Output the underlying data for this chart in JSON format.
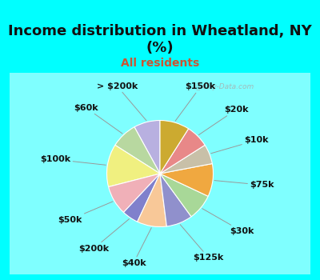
{
  "title": "Income distribution in Wheatland, NY\n(%)",
  "subtitle": "All residents",
  "background_color": "#00ffff",
  "chart_bg_color": "#e8f5ee",
  "labels": [
    "> $200k",
    "$60k",
    "$100k",
    "$50k",
    "$200k",
    "$40k",
    "$125k",
    "$30k",
    "$75k",
    "$10k",
    "$20k",
    "$150k"
  ],
  "values": [
    8,
    8,
    13,
    9,
    5,
    9,
    8,
    8,
    10,
    6,
    7,
    9
  ],
  "colors": [
    "#b8b0e0",
    "#b8d8a0",
    "#f0f080",
    "#f0b0b8",
    "#8080cc",
    "#f8c898",
    "#9090cc",
    "#a8d898",
    "#f0a840",
    "#c8c0a8",
    "#e88888",
    "#ccaa30"
  ],
  "title_fontsize": 13,
  "subtitle_fontsize": 10,
  "subtitle_color": "#cc5533",
  "title_color": "#111111",
  "startangle": 90,
  "wedge_linewidth": 0.8,
  "wedge_edgecolor": "#ffffff",
  "label_fontsize": 8,
  "label_color": "#111111"
}
